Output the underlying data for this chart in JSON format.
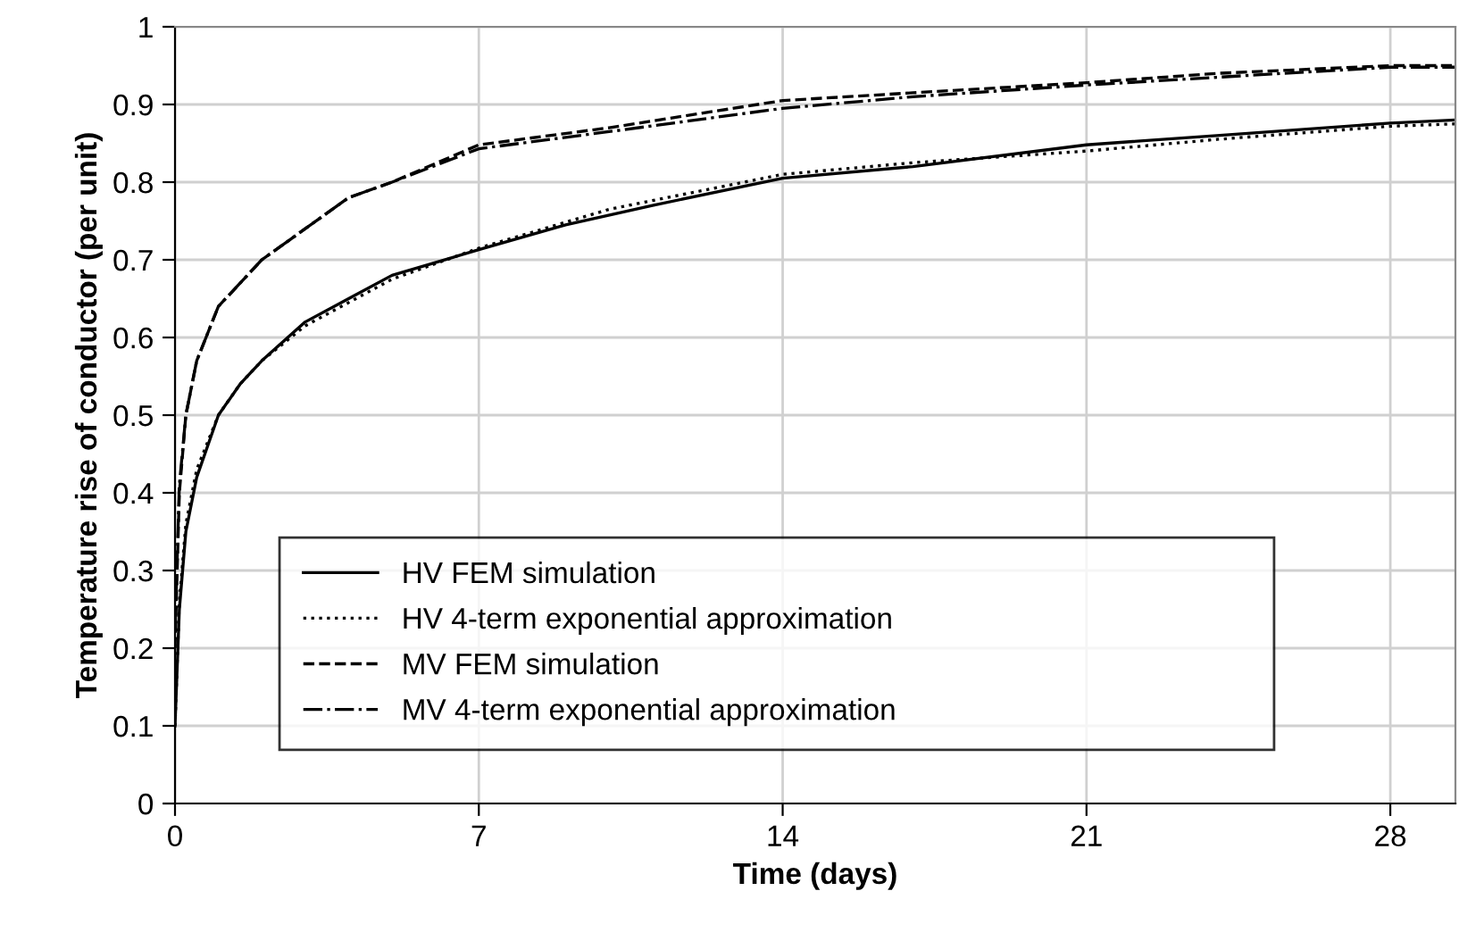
{
  "chart_data": {
    "type": "line",
    "xlabel": "Time (days)",
    "ylabel": "Temperature rise of conductor (per unit)",
    "xlim": [
      0,
      29.5
    ],
    "xticks": [
      0,
      7,
      14,
      21,
      28
    ],
    "ylim": [
      0,
      1
    ],
    "yticks": [
      0,
      {
        "value": 0.1,
        "label": "0.1"
      },
      {
        "value": 0.2,
        "label": "0.2"
      },
      {
        "value": 0.3,
        "label": "0.3"
      },
      {
        "value": 0.4,
        "label": "0.4"
      },
      {
        "value": 0.5,
        "label": "0.5"
      },
      {
        "value": 0.6,
        "label": "0.6"
      },
      {
        "value": 0.7,
        "label": "0.7"
      },
      {
        "value": 0.8,
        "label": "0.8"
      },
      {
        "value": 0.9,
        "label": "0.9"
      },
      1
    ],
    "grid": true,
    "legend": "bottom",
    "series": [
      {
        "name": "HV FEM simulation",
        "color": "#000000",
        "line_style": "solid",
        "x": [
          0,
          0.1,
          0.25,
          0.5,
          1,
          1.5,
          2,
          3,
          4,
          5,
          7,
          9,
          11,
          14,
          17,
          21,
          24,
          28,
          29.5
        ],
        "values": [
          0.1,
          0.25,
          0.35,
          0.42,
          0.5,
          0.54,
          0.57,
          0.62,
          0.65,
          0.68,
          0.713,
          0.745,
          0.77,
          0.805,
          0.82,
          0.848,
          0.86,
          0.876,
          0.88
        ]
      },
      {
        "name": "HV 4-term exponential approximation",
        "color": "#000000",
        "line_style": "dotted",
        "x": [
          0,
          0.1,
          0.25,
          0.5,
          1,
          1.5,
          2,
          3,
          4,
          5,
          7,
          10,
          14,
          17,
          21,
          24,
          28,
          29.5
        ],
        "values": [
          0.1,
          0.26,
          0.36,
          0.43,
          0.5,
          0.54,
          0.57,
          0.615,
          0.645,
          0.675,
          0.715,
          0.765,
          0.81,
          0.825,
          0.84,
          0.855,
          0.872,
          0.875
        ]
      },
      {
        "name": "MV FEM simulation",
        "color": "#000000",
        "line_style": "dashed",
        "x": [
          0,
          0.1,
          0.25,
          0.5,
          1,
          2,
          3,
          4,
          5,
          7,
          10,
          14,
          17,
          21,
          24,
          28,
          29.5
        ],
        "values": [
          0.2,
          0.4,
          0.5,
          0.57,
          0.64,
          0.7,
          0.74,
          0.78,
          0.8,
          0.848,
          0.87,
          0.905,
          0.915,
          0.928,
          0.94,
          0.95,
          0.95
        ]
      },
      {
        "name": "MV 4-term exponential approximation",
        "color": "#000000",
        "line_style": "dashdot",
        "x": [
          0,
          0.1,
          0.25,
          0.5,
          1,
          2,
          3,
          4,
          5,
          7,
          10,
          14,
          17,
          21,
          24,
          28,
          29.5
        ],
        "values": [
          0.22,
          0.41,
          0.5,
          0.57,
          0.64,
          0.7,
          0.74,
          0.78,
          0.8,
          0.843,
          0.865,
          0.895,
          0.91,
          0.925,
          0.935,
          0.948,
          0.948
        ]
      }
    ]
  }
}
